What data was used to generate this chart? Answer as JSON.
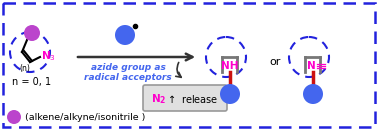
{
  "bg_color": "#ffffff",
  "border_color": "#2222dd",
  "arrow_color": "#333333",
  "blue": "#4466ee",
  "purple": "#bb44cc",
  "red": "#cc1111",
  "magenta": "#ff00cc",
  "gray_ring": "#777777",
  "text_azide1": "azide group as",
  "text_azide2": "radical acceptors",
  "text_n": "n = 0, 1",
  "text_legend": "(alkene/alkyne/isonitrile )",
  "text_or": "or",
  "text_nh": "NH",
  "text_ntriple": "N",
  "text_n3": "N",
  "sub3": "3"
}
